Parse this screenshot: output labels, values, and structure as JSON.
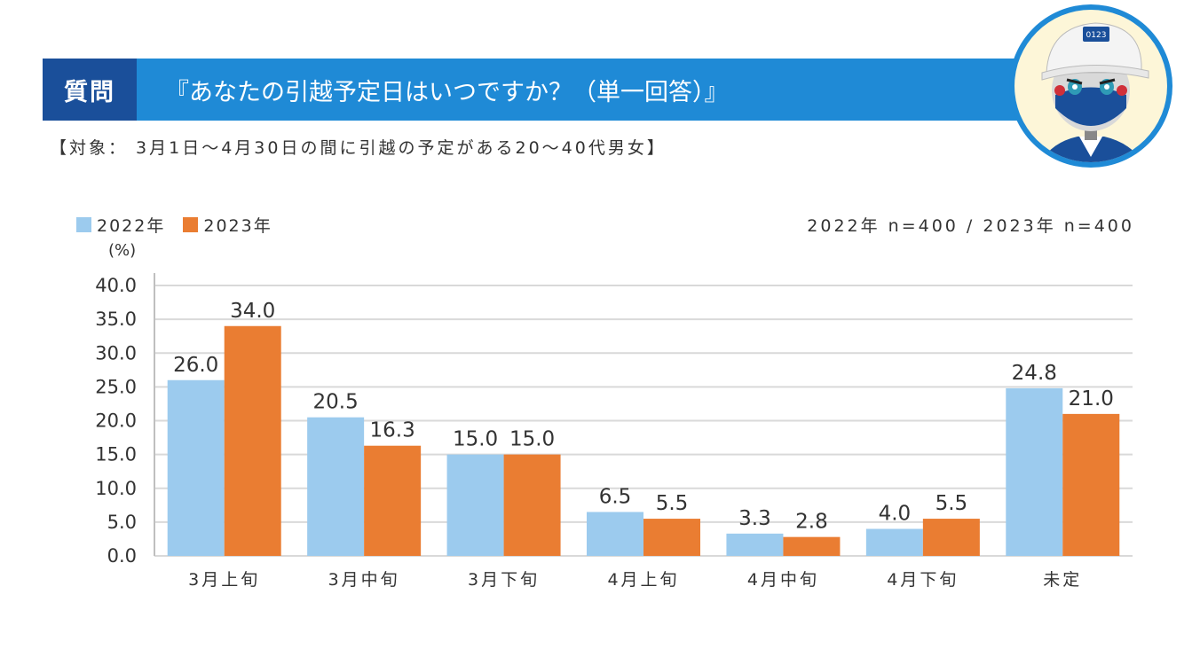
{
  "header": {
    "label": "質問",
    "question": "『あなたの引越予定日はいつですか？（単一回答）』"
  },
  "target_note": "【対象： 3月1日～4月30日の間に引越の予定がある20～40代男女】",
  "mascot_cap_text": "0123",
  "colors": {
    "banner": "#1f8ad6",
    "banner_label": "#1a4f9a",
    "series_2022": "#9ccbee",
    "series_2023": "#ea7d32",
    "grid": "#d9d9d9"
  },
  "n_note": "2022年 n=400 / 2023年 n=400",
  "chart_data": {
    "type": "bar",
    "unit_label": "(%)",
    "categories": [
      "3月上旬",
      "3月中旬",
      "3月下旬",
      "4月上旬",
      "4月中旬",
      "4月下旬",
      "未定"
    ],
    "series": [
      {
        "name": "2022年",
        "values": [
          26.0,
          20.5,
          15.0,
          6.5,
          3.3,
          4.0,
          24.8
        ]
      },
      {
        "name": "2023年",
        "values": [
          34.0,
          16.3,
          15.0,
          5.5,
          2.8,
          5.5,
          21.0
        ]
      }
    ],
    "ylim": [
      0,
      40
    ],
    "yticks": [
      "0.0",
      "5.0",
      "10.0",
      "15.0",
      "20.0",
      "25.0",
      "30.0",
      "35.0",
      "40.0"
    ],
    "legend_position": "top-left",
    "grid": true
  }
}
